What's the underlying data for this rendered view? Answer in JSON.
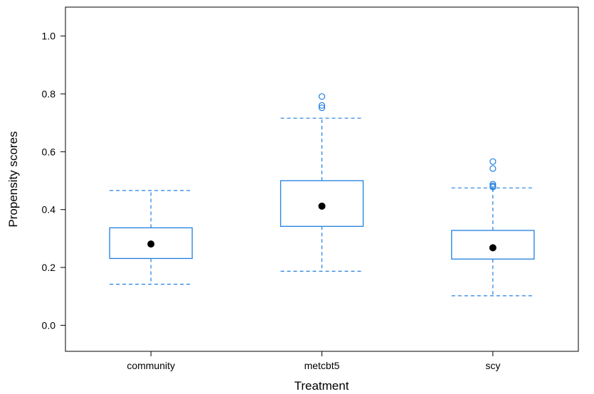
{
  "chart_data": {
    "type": "box",
    "xlabel": "Treatment",
    "ylabel": "Propensity scores",
    "ylim": [
      -0.09,
      1.1
    ],
    "yticks": [
      0.0,
      0.2,
      0.4,
      0.6,
      0.8,
      1.0
    ],
    "ytick_labels": [
      "0.0",
      "0.2",
      "0.4",
      "0.6",
      "0.8",
      "1.0"
    ],
    "categories": [
      "community",
      "metcbt5",
      "scy"
    ],
    "boxes": [
      {
        "whisker_low": 0.142,
        "q1": 0.231,
        "median": 0.281,
        "q3": 0.337,
        "whisker_high": 0.466,
        "outliers": []
      },
      {
        "whisker_low": 0.187,
        "q1": 0.342,
        "median": 0.412,
        "q3": 0.5,
        "whisker_high": 0.716,
        "outliers": [
          0.791,
          0.76,
          0.752
        ]
      },
      {
        "whisker_low": 0.102,
        "q1": 0.229,
        "median": 0.268,
        "q3": 0.328,
        "whisker_high": 0.475,
        "outliers": [
          0.566,
          0.542,
          0.488,
          0.482,
          0.478
        ]
      }
    ],
    "box_color": "#1f7fe0",
    "median_marker_color": "#000000",
    "grid": false
  }
}
